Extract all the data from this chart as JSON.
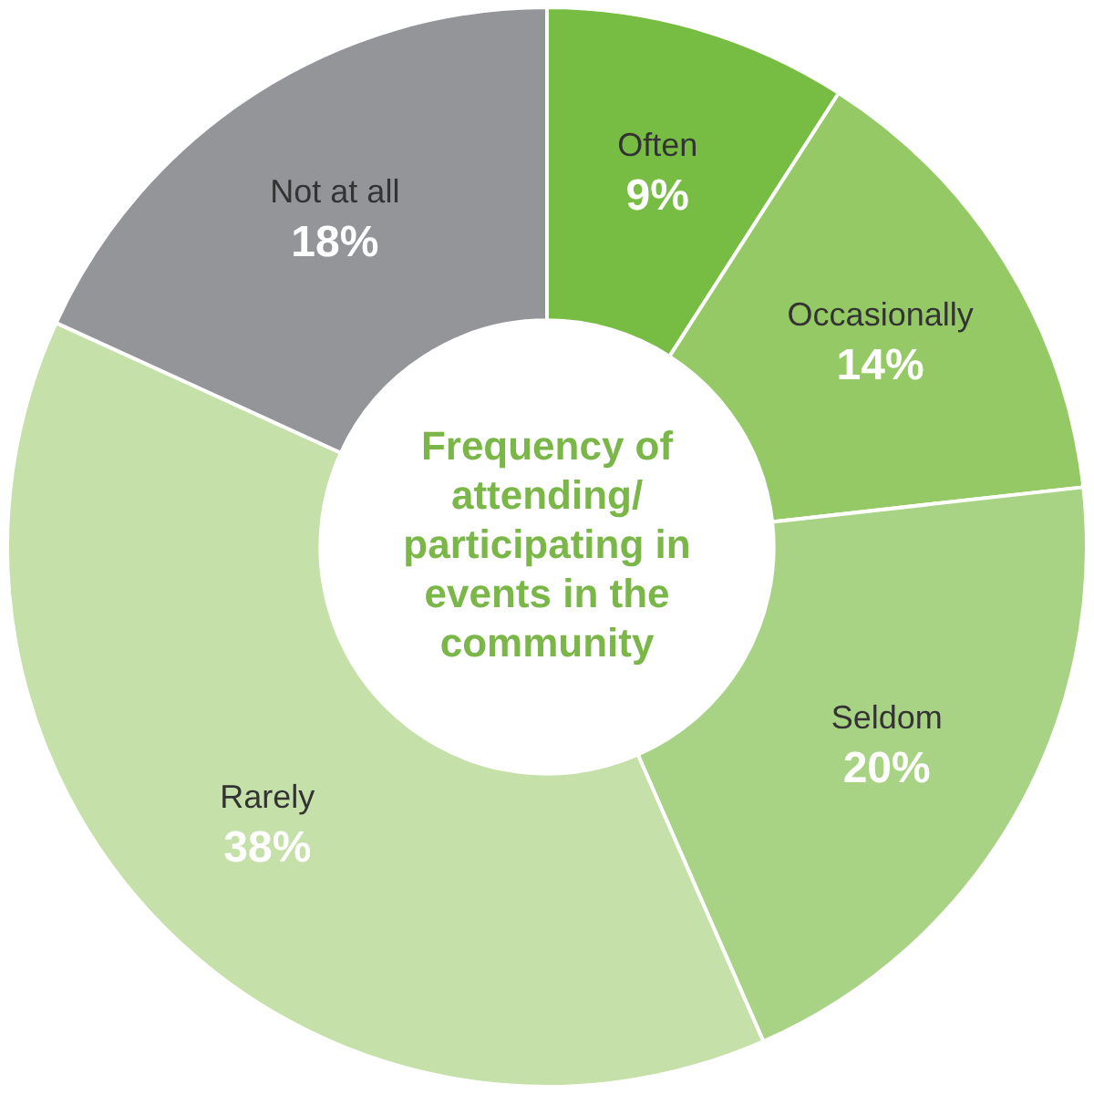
{
  "chart_data": {
    "type": "donut",
    "title": "Frequency of attending/ participating in events in the community",
    "categories": [
      "Often",
      "Occasionally",
      "Seldom",
      "Rarely",
      "Not at all"
    ],
    "values": [
      9,
      14,
      20,
      38,
      18
    ],
    "value_labels": [
      "9%",
      "14%",
      "20%",
      "38%",
      "18%"
    ],
    "colors": [
      "#77bd43",
      "#95c966",
      "#a9d384",
      "#c5e0a8",
      "#939598"
    ],
    "legend": false
  }
}
